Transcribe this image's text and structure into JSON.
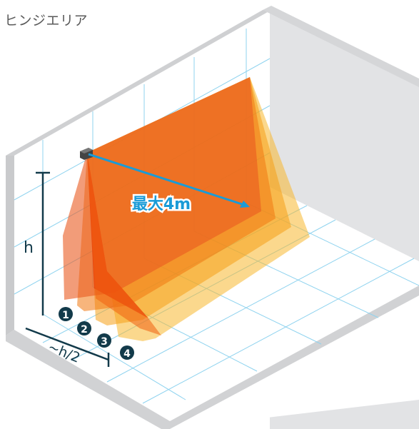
{
  "title": "ヒンジエリア",
  "labels": {
    "max_range": "最大4m",
    "height": "h",
    "offset": "~h/2"
  },
  "zones": [
    "1",
    "2",
    "3",
    "4"
  ],
  "colors": {
    "zone_1": "#e8400a",
    "zone_2": "#f07810",
    "zone_3": "#f5a018",
    "zone_4": "#f7b830",
    "grid": "#8fd3ef",
    "arrow": "#1a9bd7",
    "dimension": "#123a4a",
    "wall": "#d9dadc",
    "floor_edge": "#cfd0d2"
  }
}
